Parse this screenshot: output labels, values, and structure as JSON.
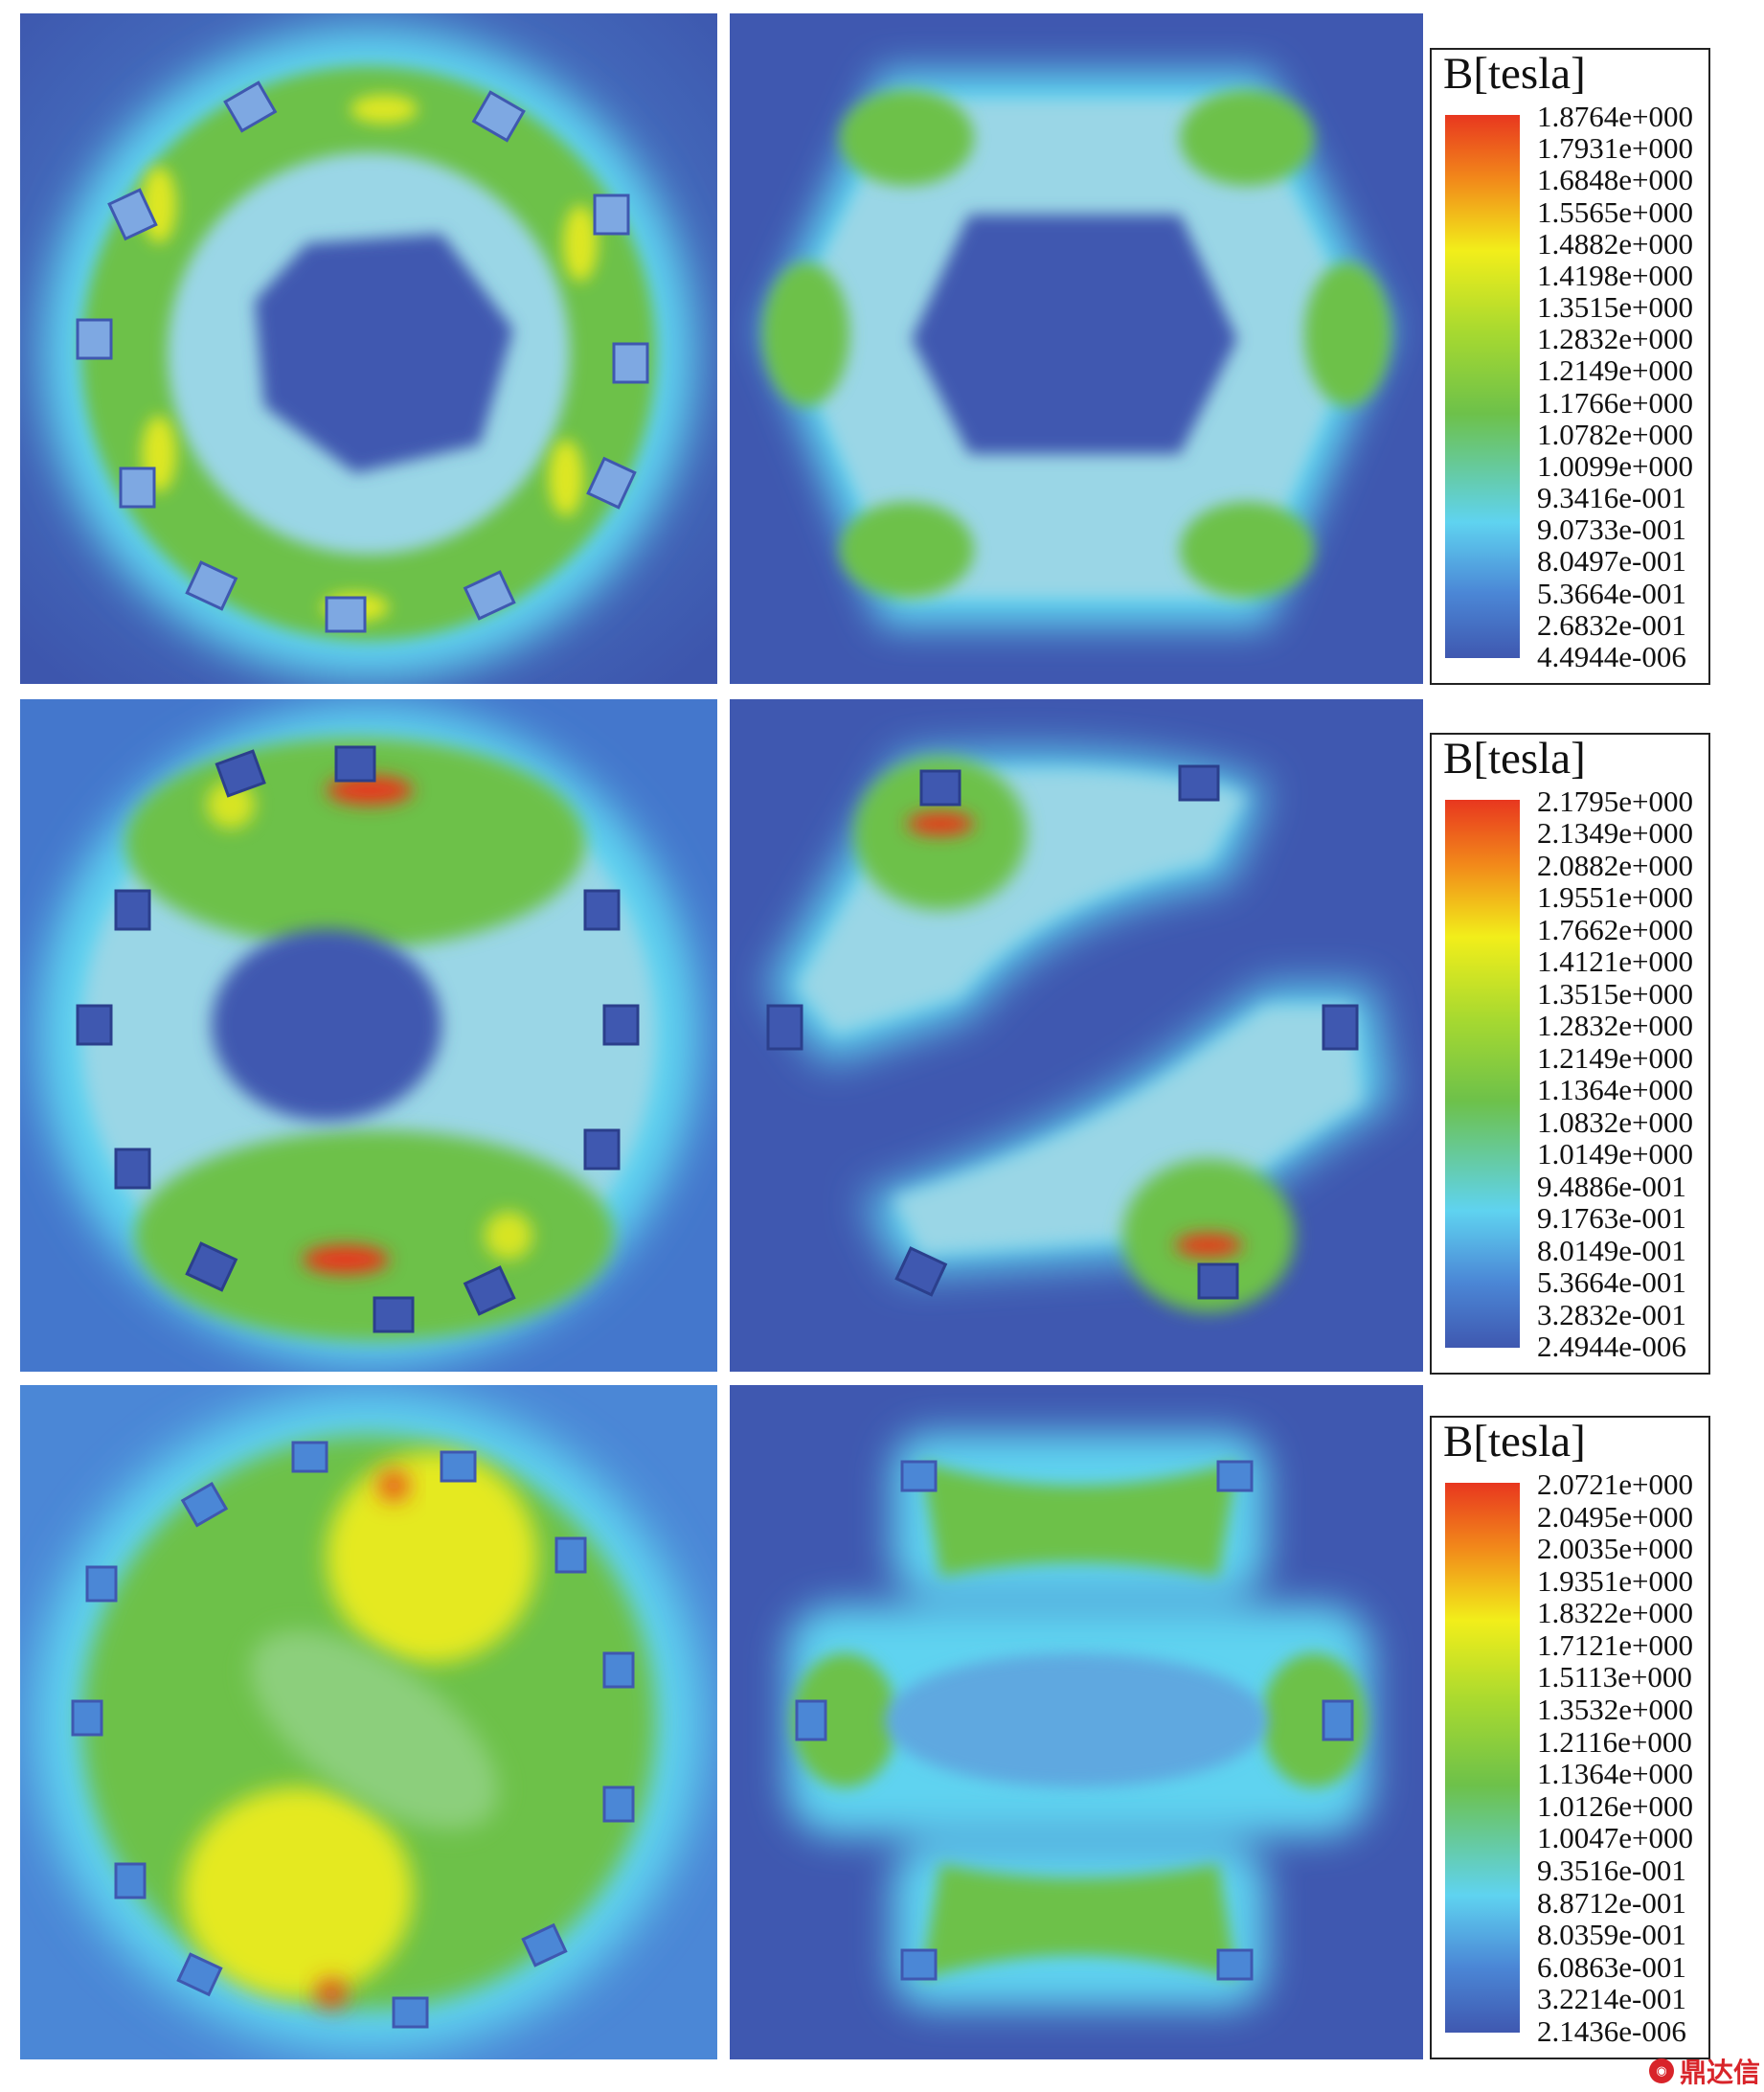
{
  "colors": {
    "field_low": "#3f58b0",
    "field_lowmid": "#4b87d6",
    "field_mid": "#5fd3f0",
    "field_light": "#9ad6e6",
    "field_green": "#6dc14a",
    "field_yellow": "#f2ee1a",
    "field_red": "#e8371f"
  },
  "legends": [
    {
      "title": "B[tesla]",
      "values": [
        "1.8764e+000",
        "1.7931e+000",
        "1.6848e+000",
        "1.5565e+000",
        "1.4882e+000",
        "1.4198e+000",
        "1.3515e+000",
        "1.2832e+000",
        "1.2149e+000",
        "1.1766e+000",
        "1.0782e+000",
        "1.0099e+000",
        "9.3416e-001",
        "9.0733e-001",
        "8.0497e-001",
        "5.3664e-001",
        "2.6832e-001",
        "4.4944e-006"
      ]
    },
    {
      "title": "B[tesla]",
      "values": [
        "2.1795e+000",
        "2.1349e+000",
        "2.0882e+000",
        "1.9551e+000",
        "1.7662e+000",
        "1.4121e+000",
        "1.3515e+000",
        "1.2832e+000",
        "1.2149e+000",
        "1.1364e+000",
        "1.0832e+000",
        "1.0149e+000",
        "9.4886e-001",
        "9.1763e-001",
        "8.0149e-001",
        "5.3664e-001",
        "3.2832e-001",
        "2.4944e-006"
      ]
    },
    {
      "title": "B[tesla]",
      "values": [
        "2.0721e+000",
        "2.0495e+000",
        "2.0035e+000",
        "1.9351e+000",
        "1.8322e+000",
        "1.7121e+000",
        "1.5113e+000",
        "1.3532e+000",
        "1.2116e+000",
        "1.1364e+000",
        "1.0126e+000",
        "1.0047e+000",
        "9.3516e-001",
        "8.8712e-001",
        "8.0359e-001",
        "6.0863e-001",
        "3.2214e-001",
        "2.1436e-006"
      ]
    }
  ],
  "watermark": {
    "text": "鼎达信",
    "icon": "logo-mark-icon"
  }
}
